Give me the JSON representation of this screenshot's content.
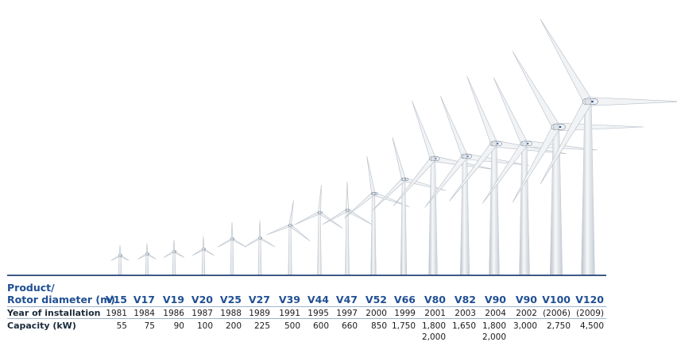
{
  "header": {
    "product_label": "Product/",
    "rotor_label": "Rotor diameter (m)"
  },
  "rows": {
    "year_label": "Year of installation",
    "capacity_label": "Capacity (kW)"
  },
  "turbines": [
    {
      "model": "V15",
      "year": "1981",
      "capacity": "55"
    },
    {
      "model": "V17",
      "year": "1984",
      "capacity": "75"
    },
    {
      "model": "V19",
      "year": "1986",
      "capacity": "90"
    },
    {
      "model": "V20",
      "year": "1987",
      "capacity": "100"
    },
    {
      "model": "V25",
      "year": "1988",
      "capacity": "200"
    },
    {
      "model": "V27",
      "year": "1989",
      "capacity": "225"
    },
    {
      "model": "V39",
      "year": "1991",
      "capacity": "500"
    },
    {
      "model": "V44",
      "year": "1995",
      "capacity": "600"
    },
    {
      "model": "V47",
      "year": "1997",
      "capacity": "660"
    },
    {
      "model": "V52",
      "year": "2000",
      "capacity": "850"
    },
    {
      "model": "V66",
      "year": "1999",
      "capacity": "1,750"
    },
    {
      "model": "V80",
      "year": "2001",
      "capacity": "1,800",
      "capacity2": "2,000"
    },
    {
      "model": "V82",
      "year": "2003",
      "capacity": "1,650"
    },
    {
      "model": "V90",
      "year": "2004",
      "capacity": "1,800",
      "capacity2": "2,000"
    },
    {
      "model": "V90",
      "year": "2002",
      "capacity": "3,000"
    },
    {
      "model": "V100",
      "year": "(2006)",
      "capacity": "2,750"
    },
    {
      "model": "V120",
      "year": "(2009)",
      "capacity": "4,500"
    }
  ],
  "colors": {
    "header_text": "#1f4f93",
    "tower": "#e4e8ec",
    "ground_line": "#3c5a86"
  }
}
